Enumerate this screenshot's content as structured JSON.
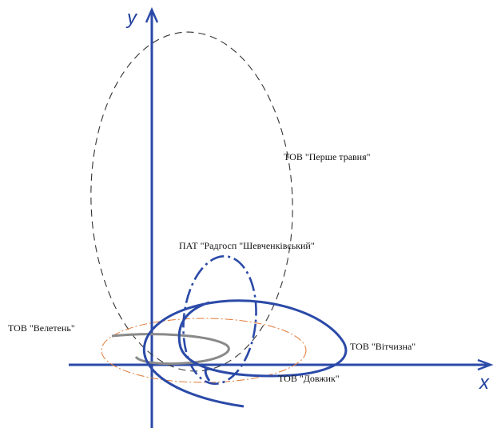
{
  "axes": {
    "x_label": "x",
    "y_label": "y"
  },
  "curves": {
    "pershe_travnia": {
      "label": "ТОВ \"Перше травня\"",
      "color": "#333333"
    },
    "radhosp": {
      "label": "ПАТ \"Радгосп \"Шевченківський\"",
      "color": "#2b4aa8"
    },
    "veleten": {
      "label": "ТОВ \"Велетень\"",
      "color": "#8a8a8a"
    },
    "vitchyzna": {
      "label": "ТОВ \"Вітчизна\"",
      "color": "#2b4aa8"
    },
    "dovzhyk": {
      "label": "ТОВ \"Довжик\"",
      "color": "#e07b39"
    }
  },
  "colors": {
    "axis": "#2b4aa8"
  }
}
